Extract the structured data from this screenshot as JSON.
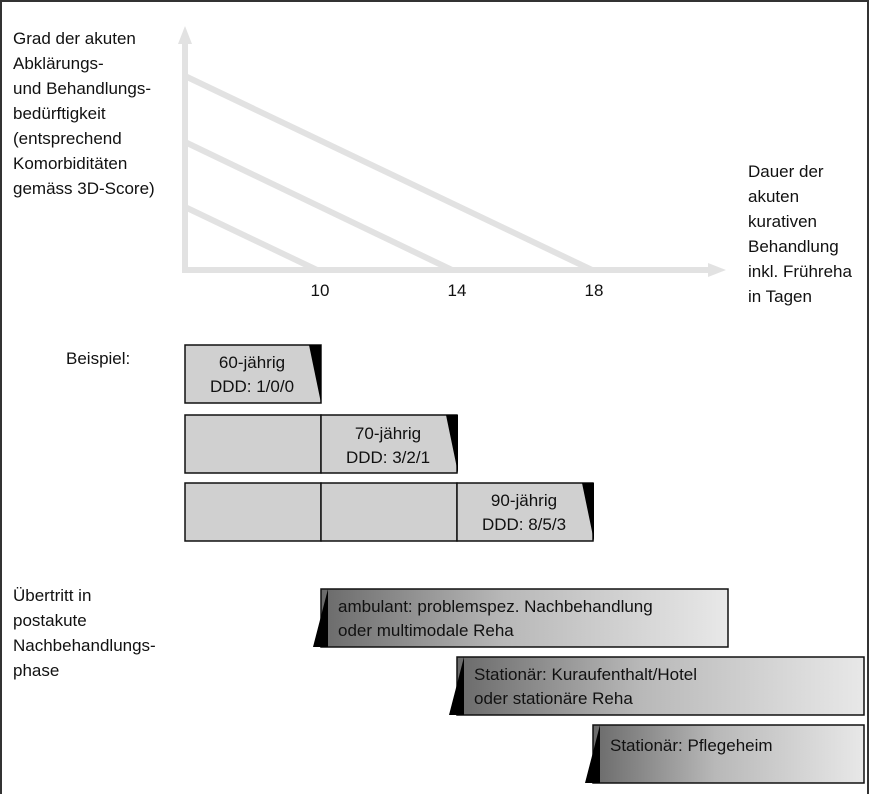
{
  "y_axis_label": [
    "Grad der akuten",
    "Abklärungs-",
    "und Behandlungs-",
    "bedürftigkeit",
    "(entsprechend",
    "Komorbiditäten",
    "gemäss 3D-Score)"
  ],
  "x_axis_label": [
    "Dauer der",
    "akuten",
    "kurativen",
    "Behandlung",
    "inkl. Frühreha",
    "in Tagen"
  ],
  "x_ticks": [
    "10",
    "14",
    "18"
  ],
  "example_label": "Beispiel:",
  "examples": [
    {
      "age": "60-jährig",
      "ddd": "DDD: 1/0/0"
    },
    {
      "age": "70-jährig",
      "ddd": "DDD: 3/2/1"
    },
    {
      "age": "90-jährig",
      "ddd": "DDD: 8/5/3"
    }
  ],
  "transition_label": [
    "Übertritt in",
    "postakute",
    "Nachbehandlungs-",
    "phase"
  ],
  "phases": [
    {
      "lines": [
        "ambulant: problemspez. Nachbehandlung",
        "oder multimodale Reha"
      ]
    },
    {
      "lines": [
        "Stationär: Kuraufenthalt/Hotel",
        "oder stationäre Reha"
      ]
    },
    {
      "lines": [
        "Stationär: Pflegeheim"
      ]
    }
  ],
  "colors": {
    "axis": "#e2e2e2",
    "block": "#d0d0d0",
    "marker": "#000000",
    "text": "#111111"
  }
}
